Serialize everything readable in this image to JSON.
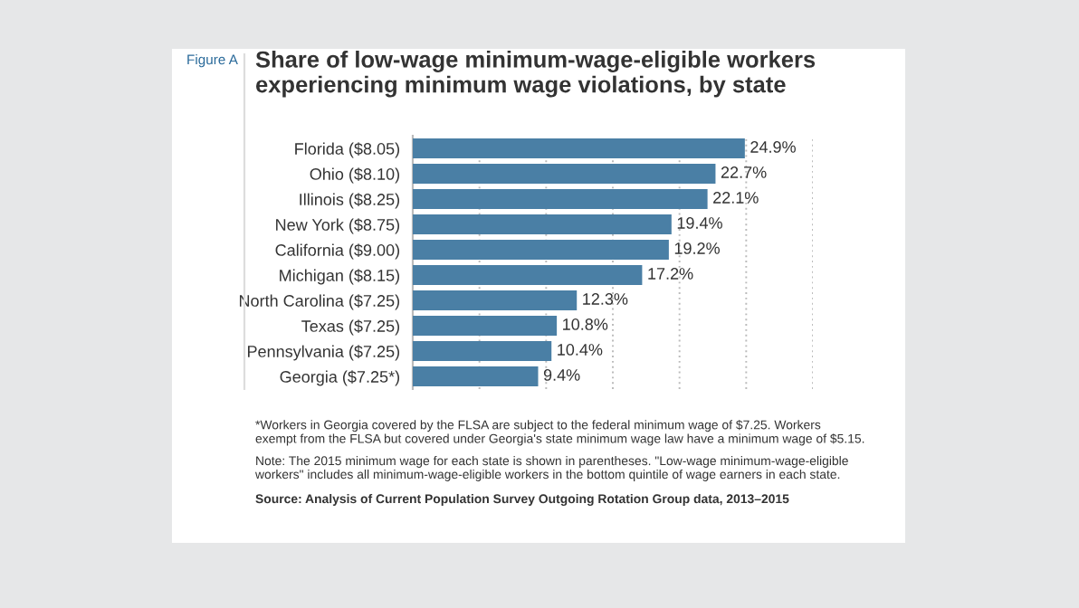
{
  "chart_data": {
    "type": "bar",
    "orientation": "horizontal",
    "title": "Share of low-wage minimum-wage-eligible workers\nexperiencing minimum wage violations, by state",
    "categories": [
      "Florida ($8.05)",
      "Ohio ($8.10)",
      "Illinois ($8.25)",
      "New York ($8.75)",
      "California ($9.00)",
      "Michigan ($8.15)",
      "North Carolina ($7.25)",
      "Texas ($7.25)",
      "Pennsylvania ($7.25)",
      "Georgia ($7.25*)"
    ],
    "values": [
      24.9,
      22.7,
      22.1,
      19.4,
      19.2,
      17.2,
      12.3,
      10.8,
      10.4,
      9.4
    ],
    "value_labels": [
      "24.9%",
      "22.7%",
      "22.1%",
      "19.4%",
      "19.2%",
      "17.2%",
      "12.3%",
      "10.8%",
      "10.4%",
      "9.4%"
    ],
    "color": "#4a7fa5",
    "xlim": [
      0,
      30
    ],
    "xticks": [
      {
        "value": 0,
        "label": null
      },
      {
        "value": 5,
        "label": null
      },
      {
        "value": 10,
        "label": null
      },
      {
        "value": 15,
        "label": null
      },
      {
        "value": 20,
        "label": null
      },
      {
        "value": 25,
        "label": null
      },
      {
        "value": 30,
        "label": null
      }
    ],
    "grid": "x",
    "tick_labels": "y",
    "annotations": [
      "Figure A",
      "*Workers in Georgia covered by the FLSA are subject to the federal minimum wage of $7.25. Workers\nexempt from the FLSA but covered under Georgia's state minimum wage law have a minimum wage of $5.15.",
      "Note: The 2015 minimum wage for each state is shown in parentheses. \"Low-wage minimum-wage-eligible\nworkers\" includes all minimum-wage-eligible workers in the bottom quintile of wage earners in each state.",
      "Source: Analysis of Current Population Survey Outgoing Rotation Group data, 2013–2015"
    ]
  }
}
